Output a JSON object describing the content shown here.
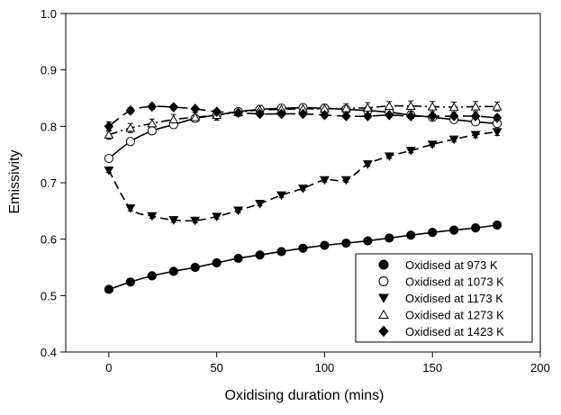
{
  "chart_data": {
    "type": "scatter",
    "title": "",
    "xlabel": "Oxidising duration (mins)",
    "ylabel": "Emissivity",
    "xlim": [
      -20,
      200
    ],
    "ylim": [
      0.4,
      1.0
    ],
    "x_ticks": [
      0,
      50,
      100,
      150,
      200
    ],
    "y_ticks": [
      0.4,
      0.5,
      0.6,
      0.7,
      0.8,
      0.9,
      1.0
    ],
    "x_tick_labels": [
      "0",
      "50",
      "100",
      "150",
      "200"
    ],
    "y_tick_labels": [
      "0.4",
      "0.5",
      "0.6",
      "0.7",
      "0.8",
      "0.9",
      "1.0"
    ],
    "grid": false,
    "legend_position": "bottom-right",
    "error_bars": true,
    "series": [
      {
        "name": "Oxidised at 973 K",
        "marker": "filled-circle",
        "line": "solid",
        "color": "#000000",
        "x": [
          0,
          10,
          20,
          30,
          40,
          50,
          60,
          70,
          80,
          90,
          100,
          110,
          120,
          130,
          140,
          150,
          160,
          170,
          180
        ],
        "y": [
          0.511,
          0.524,
          0.535,
          0.543,
          0.55,
          0.558,
          0.566,
          0.572,
          0.578,
          0.584,
          0.589,
          0.593,
          0.597,
          0.602,
          0.607,
          0.612,
          0.616,
          0.62,
          0.625
        ],
        "err": [
          0.005,
          0.006,
          0.004,
          0.004,
          0.004,
          0.004,
          0.003,
          0.003,
          0.003,
          0.003,
          0.003,
          0.003,
          0.003,
          0.004,
          0.004,
          0.004,
          0.004,
          0.004,
          0.005
        ]
      },
      {
        "name": "Oxidised at 1073 K",
        "marker": "open-circle",
        "line": "solid",
        "color": "#000000",
        "x": [
          0,
          10,
          20,
          30,
          40,
          50,
          60,
          70,
          80,
          90,
          100,
          110,
          120,
          130,
          140,
          150,
          160,
          170,
          180
        ],
        "y": [
          0.743,
          0.773,
          0.792,
          0.803,
          0.814,
          0.82,
          0.826,
          0.83,
          0.832,
          0.833,
          0.832,
          0.83,
          0.828,
          0.825,
          0.82,
          0.816,
          0.812,
          0.808,
          0.805
        ],
        "err": [
          0.005,
          0.005,
          0.005,
          0.006,
          0.006,
          0.005,
          0.005,
          0.005,
          0.004,
          0.005,
          0.005,
          0.005,
          0.006,
          0.006,
          0.006,
          0.006,
          0.005,
          0.005,
          0.005
        ]
      },
      {
        "name": "Oxidised at 1173 K",
        "marker": "filled-triangle-down",
        "line": "dashed",
        "color": "#000000",
        "x": [
          0,
          10,
          20,
          30,
          40,
          50,
          60,
          70,
          80,
          90,
          100,
          110,
          120,
          130,
          140,
          150,
          160,
          170,
          180
        ],
        "y": [
          0.722,
          0.655,
          0.641,
          0.634,
          0.633,
          0.64,
          0.651,
          0.663,
          0.678,
          0.69,
          0.705,
          0.705,
          0.733,
          0.747,
          0.757,
          0.768,
          0.777,
          0.785,
          0.79
        ],
        "err": [
          0.004,
          0.005,
          0.004,
          0.004,
          0.004,
          0.004,
          0.004,
          0.004,
          0.004,
          0.004,
          0.004,
          0.004,
          0.004,
          0.004,
          0.004,
          0.004,
          0.005,
          0.005,
          0.006
        ]
      },
      {
        "name": "Oxidised at 1273 K",
        "marker": "open-triangle-up",
        "line": "dash-dot",
        "color": "#000000",
        "x": [
          0,
          10,
          20,
          30,
          40,
          50,
          60,
          70,
          80,
          90,
          100,
          110,
          120,
          130,
          140,
          150,
          160,
          170,
          180
        ],
        "y": [
          0.785,
          0.797,
          0.805,
          0.812,
          0.816,
          0.82,
          0.825,
          0.829,
          0.83,
          0.831,
          0.831,
          0.832,
          0.833,
          0.836,
          0.836,
          0.835,
          0.834,
          0.835,
          0.835
        ],
        "err": [
          0.008,
          0.008,
          0.008,
          0.009,
          0.008,
          0.009,
          0.007,
          0.008,
          0.007,
          0.008,
          0.008,
          0.008,
          0.009,
          0.008,
          0.009,
          0.009,
          0.009,
          0.009,
          0.008
        ]
      },
      {
        "name": "Oxidised at 1423 K",
        "marker": "filled-diamond",
        "line": "long-dash",
        "color": "#000000",
        "x": [
          0,
          10,
          20,
          30,
          40,
          50,
          60,
          70,
          80,
          90,
          100,
          110,
          120,
          130,
          140,
          150,
          160,
          170,
          180
        ],
        "y": [
          0.8,
          0.828,
          0.835,
          0.834,
          0.831,
          0.826,
          0.824,
          0.822,
          0.822,
          0.822,
          0.82,
          0.818,
          0.818,
          0.82,
          0.818,
          0.818,
          0.818,
          0.818,
          0.815
        ],
        "err": [
          0.008,
          0.005,
          0.005,
          0.004,
          0.004,
          0.004,
          0.004,
          0.004,
          0.004,
          0.004,
          0.004,
          0.004,
          0.004,
          0.004,
          0.004,
          0.004,
          0.004,
          0.004,
          0.005
        ]
      }
    ]
  }
}
